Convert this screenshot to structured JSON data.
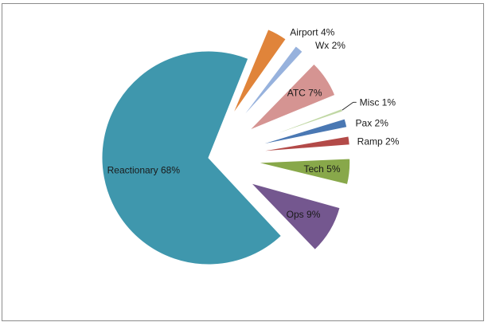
{
  "chart_data": {
    "type": "pie",
    "title": "",
    "slices": [
      {
        "label": "Reactionary 68%",
        "name": "Reactionary",
        "value": 68,
        "color": "#3f97ad"
      },
      {
        "label": "Airport 4%",
        "name": "Airport",
        "value": 4,
        "color": "#e0843a"
      },
      {
        "label": "Wx 2%",
        "name": "Wx",
        "value": 2,
        "color": "#97b2dd"
      },
      {
        "label": "ATC 7%",
        "name": "ATC",
        "value": 7,
        "color": "#d59492"
      },
      {
        "label": "Misc 1%",
        "name": "Misc",
        "value": 1,
        "color": "#c1d8a5"
      },
      {
        "label": "Pax 2%",
        "name": "Pax",
        "value": 2,
        "color": "#4a78b3"
      },
      {
        "label": "Ramp 2%",
        "name": "Ramp",
        "value": 2,
        "color": "#b34a48"
      },
      {
        "label": "Tech 5%",
        "name": "Tech",
        "value": 5,
        "color": "#88a84a"
      },
      {
        "label": "Ops 9%",
        "name": "Ops",
        "value": 9,
        "color": "#74578f"
      }
    ],
    "exploded_all_except_first": true,
    "legend": "none",
    "grid": false
  }
}
